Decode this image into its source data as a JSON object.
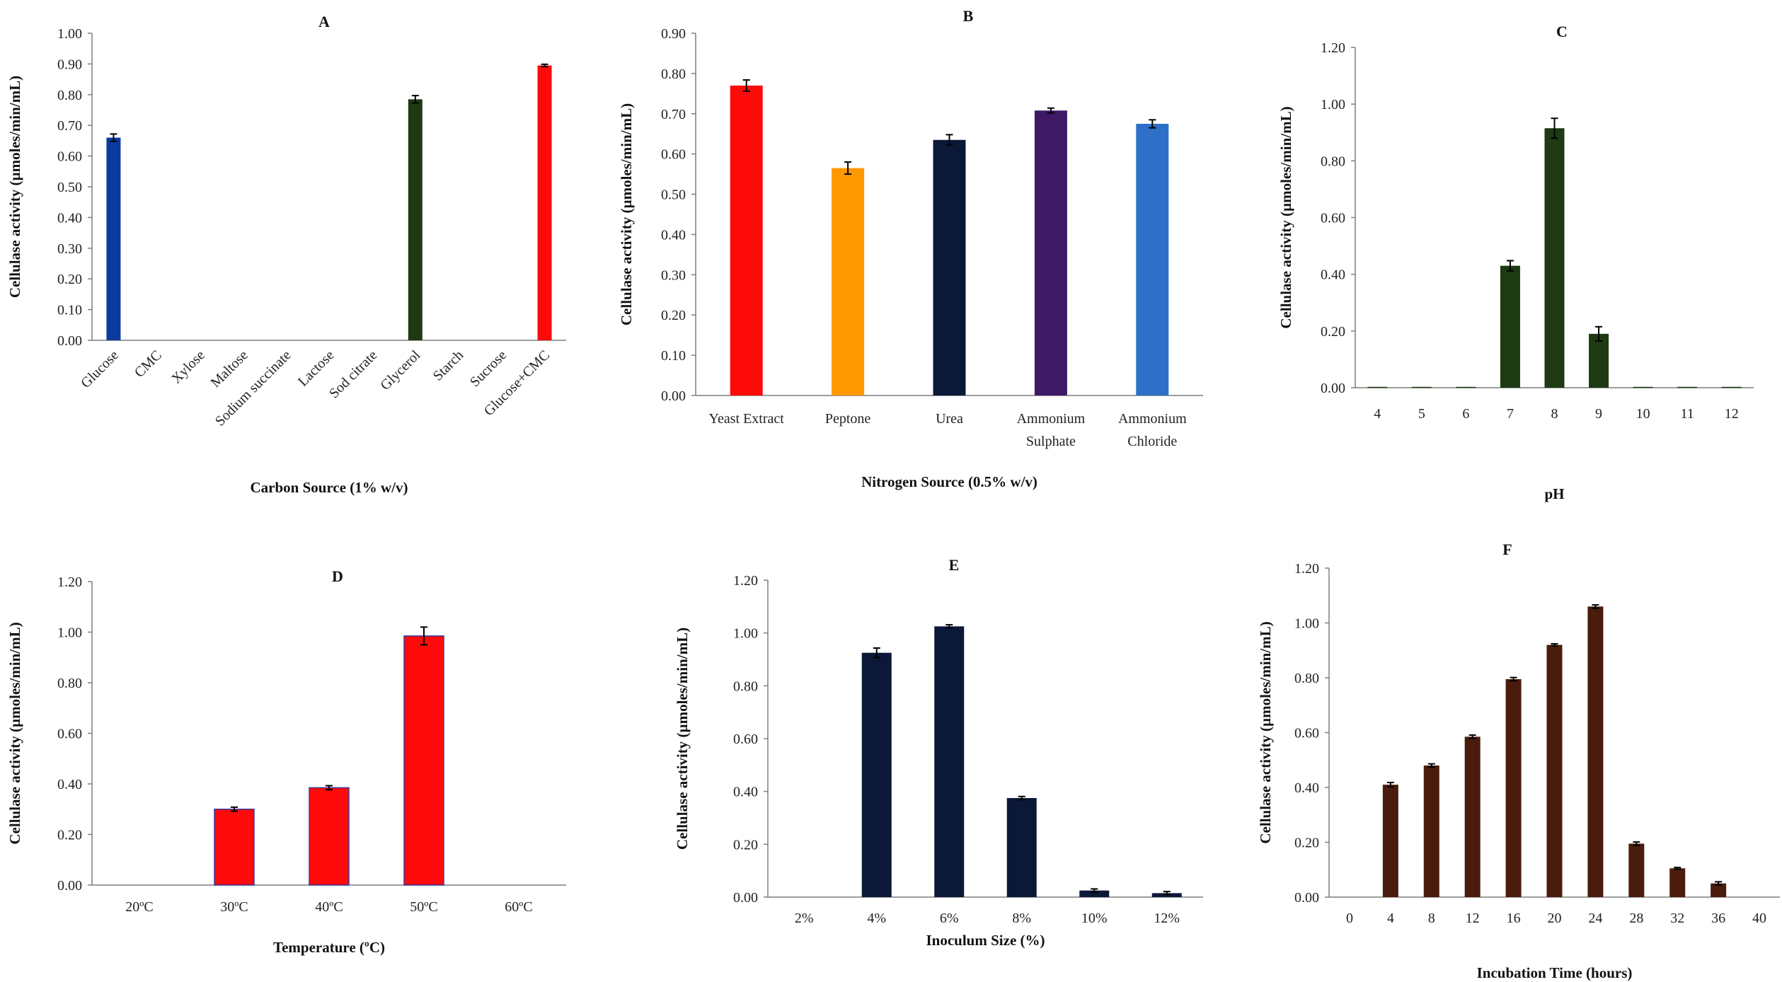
{
  "chart_data": [
    {
      "type": "bar",
      "panel": "A",
      "xlabel": "Carbon Source (1% w/v)",
      "ylabel": "Cellulase activity (µmoles/min/mL)",
      "ylim": [
        0,
        1.0
      ],
      "yticks": [
        "0.00",
        "0.10",
        "0.20",
        "0.30",
        "0.40",
        "0.50",
        "0.60",
        "0.70",
        "0.80",
        "0.90",
        "1.00"
      ],
      "categories": [
        "Glucose",
        "CMC",
        "Xylose",
        "Maltose",
        "Sodium succinate",
        "Lactose",
        "Sod citrate",
        "Glycerol",
        "Starch",
        "Sucrose",
        "Glucose+CMC"
      ],
      "values": [
        0.66,
        0,
        0,
        0,
        0,
        0,
        0,
        0.785,
        0,
        0,
        0.895
      ],
      "errors": [
        0.012,
        0,
        0,
        0,
        0,
        0,
        0,
        0.012,
        0,
        0,
        0.004
      ],
      "colors": [
        "#0b3a9e",
        "#0b3a9e",
        "#0b3a9e",
        "#0b3a9e",
        "#0b3a9e",
        "#0b3a9e",
        "#0b3a9e",
        "#1d3a12",
        "#1d3a12",
        "#1d3a12",
        "#ff0a0a"
      ],
      "rotate_labels": true,
      "grid": false
    },
    {
      "type": "bar",
      "panel": "B",
      "xlabel": "Nitrogen Source (0.5% w/v)",
      "ylabel": "Cellulase activity (µmoles/min/mL)",
      "ylim": [
        0,
        0.9
      ],
      "yticks": [
        "0.00",
        "0.10",
        "0.20",
        "0.30",
        "0.40",
        "0.50",
        "0.60",
        "0.70",
        "0.80",
        "0.90"
      ],
      "categories": [
        "Yeast Extract",
        "Peptone",
        "Urea",
        "Ammonium Sulphate",
        "Ammonium Chloride"
      ],
      "category_lines": [
        [
          "Yeast Extract"
        ],
        [
          "Peptone"
        ],
        [
          "Urea"
        ],
        [
          "Ammonium",
          "Sulphate"
        ],
        [
          "Ammonium",
          "Chloride"
        ]
      ],
      "values": [
        0.77,
        0.565,
        0.635,
        0.708,
        0.675
      ],
      "errors": [
        0.014,
        0.015,
        0.013,
        0.006,
        0.01
      ],
      "colors": [
        "#ff0a0a",
        "#ff9900",
        "#0b1838",
        "#3d1966",
        "#2e6fc8"
      ],
      "grid": false
    },
    {
      "type": "bar",
      "panel": "C",
      "xlabel": "pH",
      "ylabel": "Cellulase activity (µmoles/min/mL)",
      "ylim": [
        0,
        1.2
      ],
      "yticks": [
        "0.00",
        "0.20",
        "0.40",
        "0.60",
        "0.80",
        "1.00",
        "1.20"
      ],
      "categories": [
        "4",
        "5",
        "6",
        "7",
        "8",
        "9",
        "10",
        "11",
        "12"
      ],
      "values": [
        0.003,
        0.003,
        0.003,
        0.43,
        0.915,
        0.19,
        0.003,
        0.003,
        0.003
      ],
      "errors": [
        0,
        0,
        0,
        0.018,
        0.035,
        0.025,
        0,
        0,
        0
      ],
      "colors": [
        "#1d3a12",
        "#1d3a12",
        "#1d3a12",
        "#1d3a12",
        "#1d3a12",
        "#1d3a12",
        "#1d3a12",
        "#1d3a12",
        "#1d3a12"
      ],
      "grid": false
    },
    {
      "type": "bar",
      "panel": "D",
      "xlabel": "Temperature (ºC)",
      "ylabel": "Cellulase activity (µmoles/min/mL)",
      "ylim": [
        0,
        1.2
      ],
      "yticks": [
        "0.00",
        "0.20",
        "0.40",
        "0.60",
        "0.80",
        "1.00",
        "1.20"
      ],
      "categories": [
        "20ºC",
        "30ºC",
        "40ºC",
        "50ºC",
        "60ºC"
      ],
      "values": [
        0,
        0.3,
        0.385,
        0.985,
        0
      ],
      "errors": [
        0,
        0.008,
        0.008,
        0.035,
        0
      ],
      "colors": [
        "#ff0a0a",
        "#ff0a0a",
        "#ff0a0a",
        "#ff0a0a",
        "#ff0a0a"
      ],
      "outline": "#3a3aa0",
      "grid": false
    },
    {
      "type": "bar",
      "panel": "E",
      "xlabel": "Inoculum Size (%)",
      "ylabel": "Cellulase activity (µmoles/min/mL)",
      "ylim": [
        0,
        1.2
      ],
      "yticks": [
        "0.00",
        "0.20",
        "0.40",
        "0.60",
        "0.80",
        "1.00",
        "1.20"
      ],
      "categories": [
        "2%",
        "4%",
        "6%",
        "8%",
        "10%",
        "12%"
      ],
      "values": [
        0,
        0.925,
        1.025,
        0.375,
        0.025,
        0.015
      ],
      "errors": [
        0,
        0.018,
        0.006,
        0.006,
        0.006,
        0.006
      ],
      "colors": [
        "#0b1838",
        "#0b1838",
        "#0b1838",
        "#0b1838",
        "#0b1838",
        "#0b1838"
      ],
      "grid": false
    },
    {
      "type": "bar",
      "panel": "F",
      "xlabel": "Incubation Time (hours)",
      "ylabel": "Cellulase activity (µmoles/min/mL)",
      "ylim": [
        0,
        1.2
      ],
      "yticks": [
        "0.00",
        "0.20",
        "0.40",
        "0.60",
        "0.80",
        "1.00",
        "1.20"
      ],
      "categories": [
        "0",
        "4",
        "8",
        "12",
        "16",
        "20",
        "24",
        "28",
        "32",
        "36",
        "40"
      ],
      "values": [
        0,
        0.41,
        0.48,
        0.585,
        0.795,
        0.92,
        1.06,
        0.195,
        0.105,
        0.05,
        0
      ],
      "errors": [
        0,
        0.008,
        0.006,
        0.006,
        0.006,
        0.004,
        0.006,
        0.006,
        0.003,
        0.006,
        0
      ],
      "colors": [
        "#4a1c0c",
        "#4a1c0c",
        "#4a1c0c",
        "#4a1c0c",
        "#4a1c0c",
        "#4a1c0c",
        "#4a1c0c",
        "#4a1c0c",
        "#4a1c0c",
        "#4a1c0c",
        "#4a1c0c"
      ],
      "grid": false
    }
  ]
}
